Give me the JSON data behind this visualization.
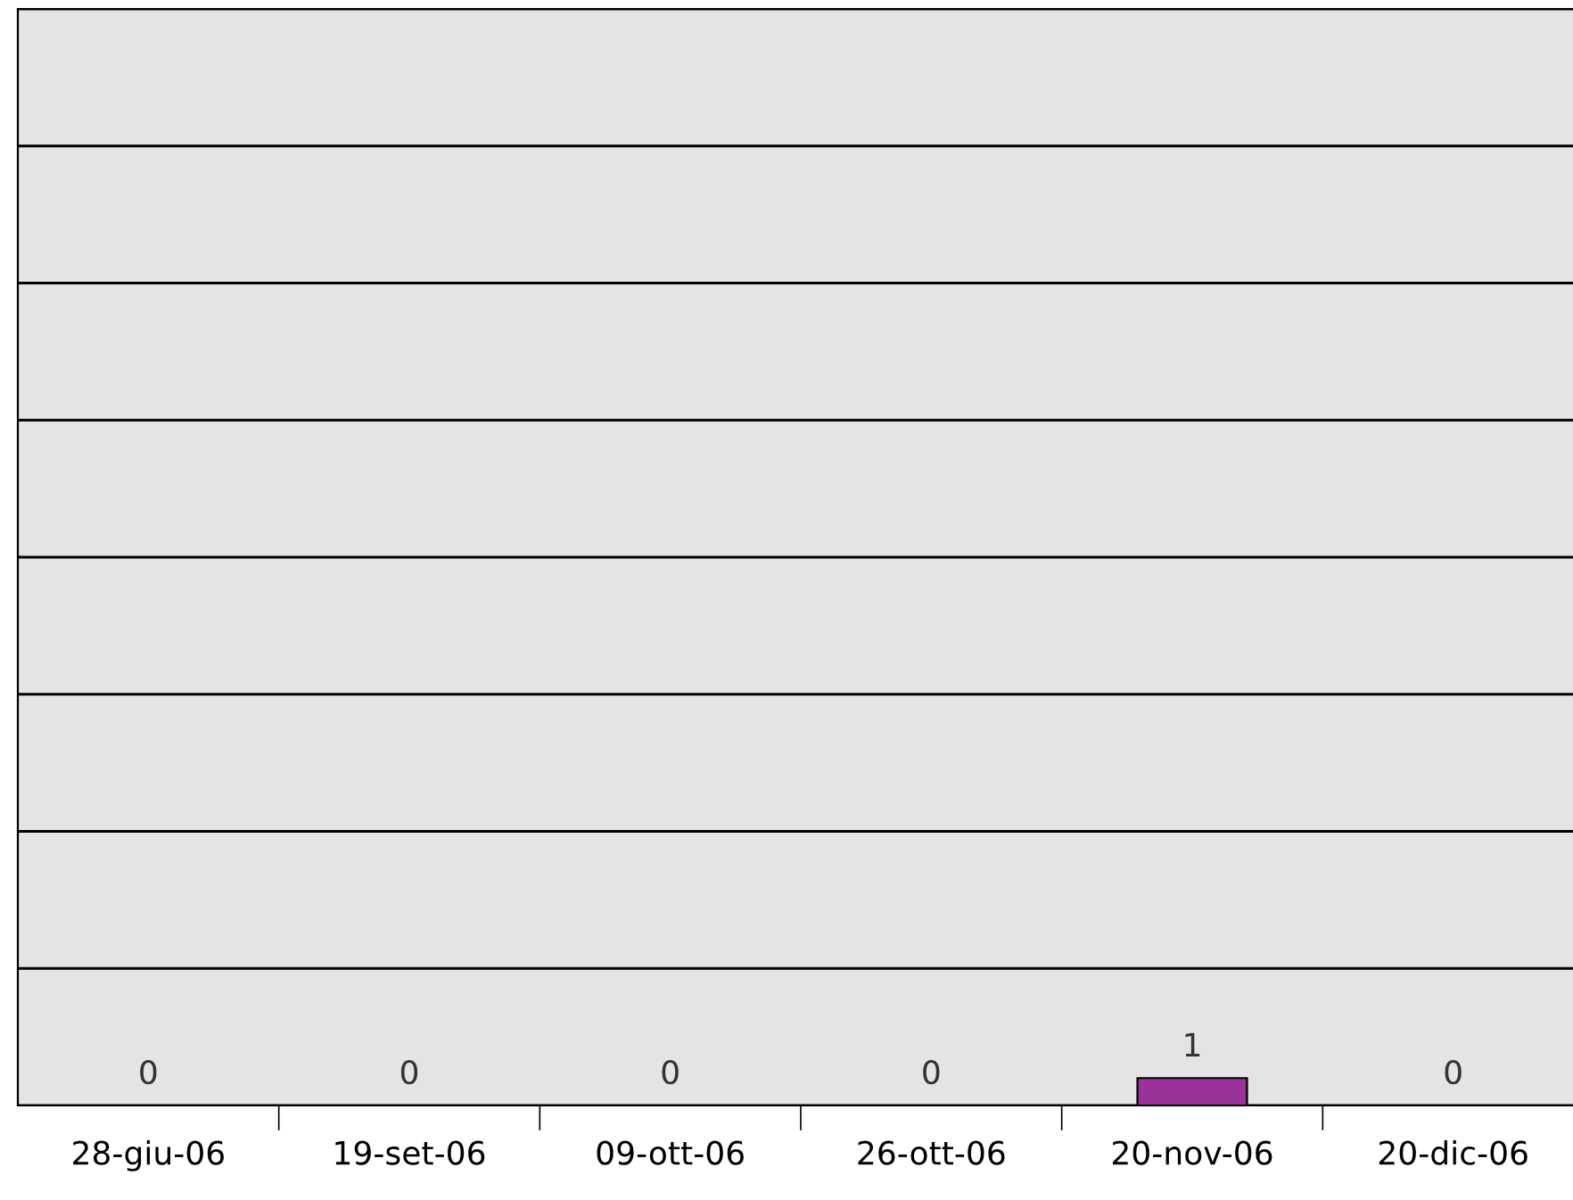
{
  "chart_data": {
    "type": "bar",
    "categories": [
      "28-giu-06",
      "19-set-06",
      "09-ott-06",
      "26-ott-06",
      "20-nov-06",
      "20-dic-06"
    ],
    "values": [
      0,
      0,
      0,
      0,
      1,
      0
    ],
    "color": "#993399",
    "ylim": [
      0,
      40
    ],
    "yticks": [
      {
        "value": 0,
        "label": null
      },
      {
        "value": 5,
        "label": null
      },
      {
        "value": 10,
        "label": null
      },
      {
        "value": 15,
        "label": null
      },
      {
        "value": 20,
        "label": null
      },
      {
        "value": 25,
        "label": null
      },
      {
        "value": 30,
        "label": null
      },
      {
        "value": 35,
        "label": null
      },
      {
        "value": 40,
        "label": null
      }
    ],
    "grid": "y",
    "tick_labels": "x",
    "data_labels": true,
    "legend": false
  }
}
